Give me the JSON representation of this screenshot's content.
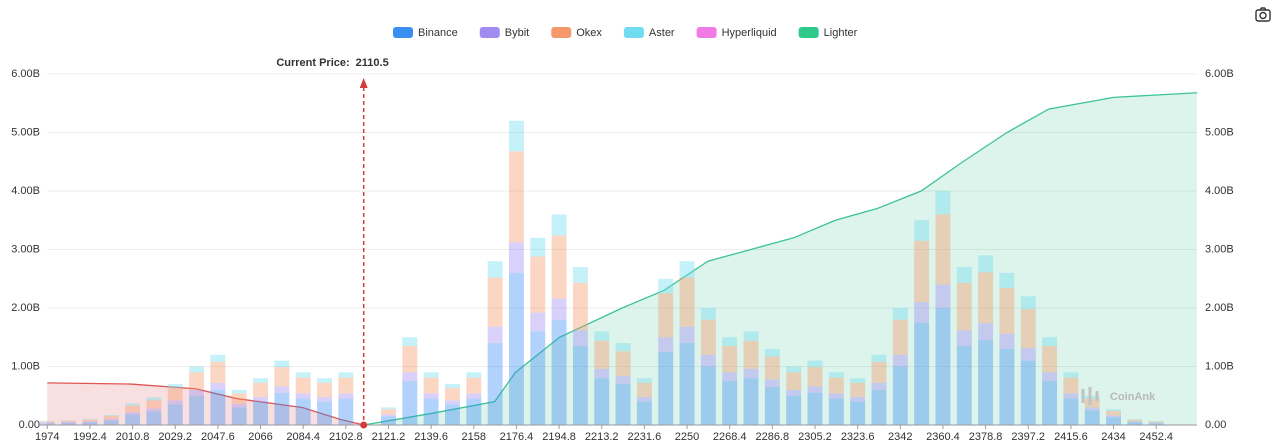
{
  "chart_data": {
    "type": "bar",
    "stacked": true,
    "x": [
      1974,
      1983.2,
      1992.4,
      2001.6,
      2010.8,
      2020,
      2029.2,
      2038.4,
      2047.6,
      2056.8,
      2066,
      2075.2,
      2084.4,
      2093.6,
      2102.8,
      2112,
      2121.2,
      2130.4,
      2139.6,
      2148.8,
      2158,
      2167.2,
      2176.4,
      2185.6,
      2194.8,
      2204,
      2213.2,
      2222.4,
      2231.6,
      2240.8,
      2250,
      2259.2,
      2268.4,
      2277.6,
      2286.8,
      2296,
      2305.2,
      2314.4,
      2323.6,
      2332.8,
      2342,
      2351.2,
      2360.4,
      2369.6,
      2378.8,
      2388,
      2397.2,
      2406.4,
      2415.6,
      2424.8,
      2434,
      2443.2,
      2452.4
    ],
    "series": [
      {
        "name": "Binance",
        "color": "#3b8ff3",
        "values": [
          0.03,
          0.04,
          0.05,
          0.08,
          0.18,
          0.23,
          0.35,
          0.5,
          0.6,
          0.3,
          0.4,
          0.55,
          0.45,
          0.4,
          0.45,
          0,
          0.15,
          0.75,
          0.45,
          0.35,
          0.45,
          1.4,
          2.6,
          1.6,
          1.8,
          1.35,
          0.8,
          0.7,
          0.4,
          1.25,
          1.4,
          1.0,
          0.75,
          0.8,
          0.65,
          0.5,
          0.55,
          0.45,
          0.4,
          0.6,
          1.0,
          1.75,
          2.0,
          1.35,
          1.45,
          1.3,
          1.1,
          0.75,
          0.45,
          0.25,
          0.13,
          0.05,
          0.03
        ]
      },
      {
        "name": "Bybit",
        "color": "#a08cf0",
        "values": [
          0.01,
          0.01,
          0.01,
          0.02,
          0.04,
          0.05,
          0.07,
          0.1,
          0.12,
          0.06,
          0.08,
          0.11,
          0.09,
          0.08,
          0.09,
          0,
          0.03,
          0.15,
          0.09,
          0.07,
          0.09,
          0.28,
          0.52,
          0.32,
          0.36,
          0.27,
          0.16,
          0.14,
          0.08,
          0.25,
          0.28,
          0.2,
          0.15,
          0.16,
          0.13,
          0.1,
          0.11,
          0.09,
          0.08,
          0.12,
          0.2,
          0.35,
          0.4,
          0.27,
          0.29,
          0.26,
          0.22,
          0.15,
          0.09,
          0.05,
          0.03,
          0.01,
          0.01
        ]
      },
      {
        "name": "Okex",
        "color": "#f5986a",
        "values": [
          0.02,
          0.02,
          0.03,
          0.05,
          0.11,
          0.14,
          0.21,
          0.3,
          0.36,
          0.18,
          0.24,
          0.33,
          0.27,
          0.24,
          0.27,
          0,
          0.09,
          0.45,
          0.27,
          0.21,
          0.27,
          0.84,
          1.56,
          0.96,
          1.08,
          0.81,
          0.48,
          0.42,
          0.24,
          0.75,
          0.84,
          0.6,
          0.45,
          0.48,
          0.39,
          0.3,
          0.33,
          0.27,
          0.24,
          0.36,
          0.6,
          1.05,
          1.2,
          0.81,
          0.87,
          0.78,
          0.66,
          0.45,
          0.27,
          0.15,
          0.08,
          0.03,
          0.02
        ]
      },
      {
        "name": "Aster",
        "color": "#6fdcf0",
        "values": [
          0.01,
          0.01,
          0.01,
          0.02,
          0.04,
          0.05,
          0.07,
          0.1,
          0.12,
          0.06,
          0.08,
          0.11,
          0.09,
          0.08,
          0.09,
          0,
          0.03,
          0.15,
          0.09,
          0.07,
          0.09,
          0.28,
          0.52,
          0.32,
          0.36,
          0.27,
          0.16,
          0.14,
          0.08,
          0.25,
          0.28,
          0.2,
          0.15,
          0.16,
          0.13,
          0.1,
          0.11,
          0.09,
          0.08,
          0.12,
          0.2,
          0.35,
          0.4,
          0.27,
          0.29,
          0.26,
          0.22,
          0.15,
          0.09,
          0.05,
          0.03,
          0.01,
          0.01
        ]
      },
      {
        "name": "Hyperliquid",
        "color": "#f07ae6",
        "values": [
          0,
          0,
          0,
          0,
          0,
          0,
          0,
          0,
          0,
          0,
          0,
          0,
          0,
          0,
          0,
          0,
          0,
          0,
          0,
          0,
          0,
          0,
          0,
          0,
          0,
          0,
          0,
          0,
          0,
          0,
          0,
          0,
          0,
          0,
          0,
          0,
          0,
          0,
          0,
          0,
          0,
          0,
          0,
          0,
          0,
          0,
          0,
          0,
          0,
          0,
          0,
          0,
          0
        ]
      },
      {
        "name": "Lighter",
        "color": "#2fc98a",
        "values": [
          0,
          0,
          0,
          0,
          0,
          0,
          0,
          0,
          0,
          0,
          0,
          0,
          0,
          0,
          0,
          0,
          0,
          0,
          0,
          0,
          0,
          0,
          0,
          0,
          0,
          0,
          0,
          0,
          0,
          0,
          0,
          0,
          0,
          0,
          0,
          0,
          0,
          0,
          0,
          0,
          0,
          0,
          0,
          0,
          0,
          0,
          0,
          0,
          0,
          0,
          0,
          0,
          0
        ]
      }
    ],
    "cumulative": [
      {
        "color": "#e05555",
        "axis": "y2",
        "x": [
          1974,
          2010,
          2038,
          2056,
          2084,
          2100,
          2110.5
        ],
        "values": [
          0.72,
          0.7,
          0.62,
          0.45,
          0.3,
          0.1,
          0
        ]
      },
      {
        "color": "#3cc394",
        "axis": "y2",
        "x": [
          2110.5,
          2140,
          2167,
          2176,
          2195,
          2222,
          2240,
          2259,
          2296,
          2314,
          2332,
          2351,
          2369,
          2388,
          2406,
          2434,
          2470
        ],
        "values": [
          0,
          0.2,
          0.4,
          0.9,
          1.5,
          2.0,
          2.3,
          2.8,
          3.2,
          3.5,
          3.7,
          4.0,
          4.5,
          5.0,
          5.4,
          5.6,
          5.68
        ]
      }
    ],
    "annotation": {
      "label": "Current Price:",
      "value": 2110.5
    },
    "watermark": "CoinAnk",
    "xlim": [
      1970,
      2470
    ],
    "xticks": [
      1974,
      1992.4,
      2010.8,
      2029.2,
      2047.6,
      2066,
      2084.4,
      2102.8,
      2121.2,
      2139.6,
      2158,
      2176.4,
      2194.8,
      2213.2,
      2231.6,
      2250,
      2268.4,
      2286.8,
      2305.2,
      2323.6,
      2342,
      2360.4,
      2378.8,
      2397.2,
      2415.6,
      2434,
      2452.4
    ],
    "ylim": [
      0,
      6
    ],
    "yticks": [
      {
        "value": 0,
        "label": "0.00"
      },
      {
        "value": 1,
        "label": "1.00B"
      },
      {
        "value": 2,
        "label": "2.00B"
      },
      {
        "value": 3,
        "label": "3.00B"
      },
      {
        "value": 4,
        "label": "4.00B"
      },
      {
        "value": 5,
        "label": "5.00B"
      },
      {
        "value": 6,
        "label": "6.00B"
      }
    ],
    "y2lim": [
      0,
      6
    ],
    "y2ticks": [
      {
        "value": 0,
        "label": "0.00"
      },
      {
        "value": 1,
        "label": "1.00B"
      },
      {
        "value": 2,
        "label": "2.00B"
      },
      {
        "value": 3,
        "label": "3.00B"
      },
      {
        "value": 4,
        "label": "4.00B"
      },
      {
        "value": 5,
        "label": "5.00B"
      },
      {
        "value": 6,
        "label": "6.00B"
      }
    ],
    "grid": true
  }
}
